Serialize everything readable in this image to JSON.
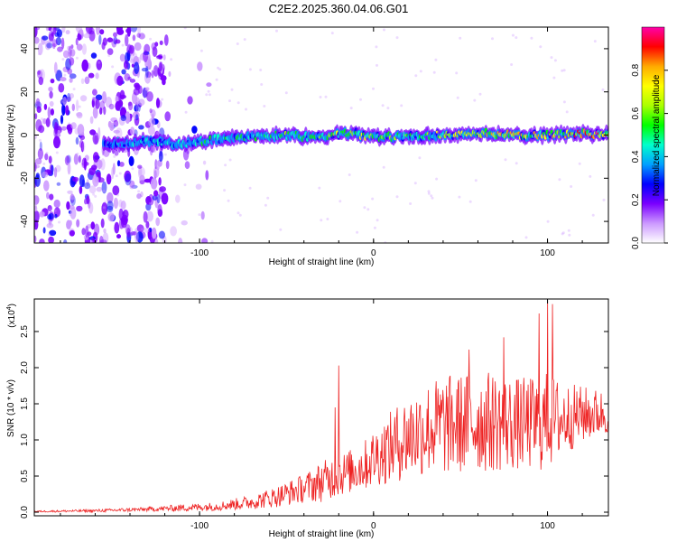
{
  "title": "C2E2.2025.360.04.06.G01",
  "chart_data": [
    {
      "type": "heatmap",
      "title": "C2E2.2025.360.04.06.G01",
      "xlabel": "Height of straight line (km)",
      "ylabel": "Frequency (Hz)",
      "xlim": [
        -195,
        135
      ],
      "ylim": [
        -50,
        50
      ],
      "xticks": [
        -100,
        0,
        100
      ],
      "xtick_labels": [
        "-100",
        "0",
        "100"
      ],
      "yticks": [
        -40,
        -20,
        0,
        20,
        40
      ],
      "ytick_labels": [
        "-40",
        "-20",
        "0",
        "20",
        "40"
      ],
      "colorbar": {
        "label": "Normalized spectral amplitude",
        "range": [
          0,
          1
        ],
        "ticks": [
          0,
          0.2,
          0.4,
          0.6,
          0.8
        ],
        "tick_labels": [
          "0.0",
          "0.2",
          "0.4",
          "0.6",
          "0.8"
        ],
        "colors": [
          "#ffffff",
          "#cc99ff",
          "#7a00ff",
          "#0000ff",
          "#00a0ff",
          "#00ffcc",
          "#00ff00",
          "#aaff00",
          "#ffff00",
          "#ffaa00",
          "#ff0000",
          "#ff00aa"
        ]
      },
      "ridge": {
        "description_points_x": [
          -150,
          -130,
          -110,
          -90,
          -70,
          -50,
          -30,
          -15,
          0,
          20,
          40,
          60,
          80,
          100,
          120,
          135
        ],
        "center_freq_hz": [
          -4,
          -3,
          -4,
          -2,
          -1,
          0,
          -1,
          1,
          -1,
          -1,
          0,
          1,
          0,
          0,
          1,
          0
        ],
        "peak_amplitude": [
          0.35,
          0.45,
          0.5,
          0.55,
          0.55,
          0.6,
          0.6,
          0.8,
          0.7,
          0.6,
          0.75,
          0.8,
          0.85,
          0.85,
          0.95,
          1.0
        ]
      },
      "noise_region_x": [
        -195,
        -120
      ]
    },
    {
      "type": "line",
      "xlabel": "Height of straight line (km)",
      "ylabel": "SNR (10 * v/v)",
      "y_multiplier_label": "(x10",
      "y_multiplier_exp": "4",
      "y_multiplier_close": ")",
      "xlim": [
        -195,
        135
      ],
      "ylim": [
        -0.05,
        2.95
      ],
      "xticks": [
        -100,
        0,
        100
      ],
      "xtick_labels": [
        "-100",
        "0",
        "100"
      ],
      "yticks": [
        0,
        0.5,
        1,
        1.5,
        2,
        2.5
      ],
      "ytick_labels": [
        "0.0",
        "0.5",
        "1.0",
        "1.5",
        "2.0",
        "2.5"
      ],
      "series": [
        {
          "name": "SNR",
          "color": "#ee2222",
          "envelope_x": [
            -195,
            -160,
            -130,
            -110,
            -90,
            -70,
            -55,
            -40,
            -30,
            -22,
            -15,
            -5,
            0,
            10,
            20,
            30,
            40,
            50,
            60,
            70,
            80,
            90,
            100,
            110,
            120,
            135
          ],
          "envelope_mean": [
            0.01,
            0.02,
            0.04,
            0.06,
            0.08,
            0.14,
            0.22,
            0.33,
            0.42,
            0.5,
            0.55,
            0.65,
            0.75,
            0.9,
            1.05,
            1.15,
            1.2,
            1.22,
            1.25,
            1.25,
            1.22,
            1.22,
            1.25,
            1.3,
            1.35,
            1.38
          ],
          "envelope_spread": [
            0.01,
            0.02,
            0.03,
            0.05,
            0.06,
            0.1,
            0.15,
            0.2,
            0.28,
            0.3,
            0.3,
            0.35,
            0.4,
            0.5,
            0.6,
            0.65,
            0.7,
            0.7,
            0.7,
            0.7,
            0.65,
            0.65,
            0.7,
            0.5,
            0.4,
            0.3
          ],
          "peaks": [
            {
              "x": -20,
              "y": 2.03
            },
            {
              "x": -22,
              "y": 1.45
            },
            {
              "x": 95,
              "y": 2.75
            },
            {
              "x": 100,
              "y": 2.93
            },
            {
              "x": 103,
              "y": 2.88
            },
            {
              "x": 75,
              "y": 2.42
            },
            {
              "x": 55,
              "y": 2.25
            }
          ]
        }
      ]
    }
  ]
}
